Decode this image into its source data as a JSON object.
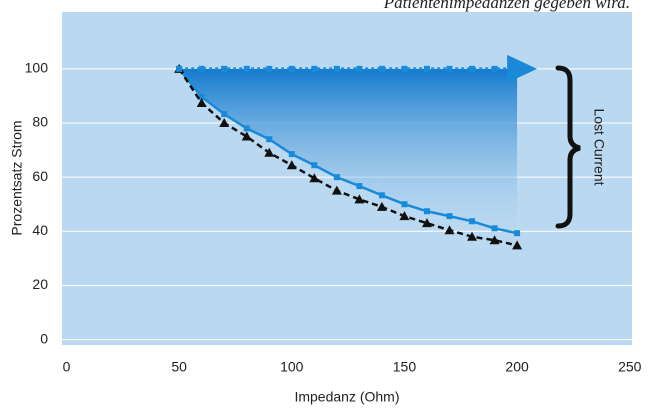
{
  "chart_data": {
    "type": "line",
    "caption": "Patientenimpedanzen gegeben wird.",
    "x_label": "Impedanz (Ohm)",
    "y_label": "Prozentsatz Strom",
    "annotation": "Lost Current",
    "x": [
      50,
      60,
      70,
      80,
      90,
      100,
      110,
      120,
      130,
      140,
      150,
      160,
      170,
      180,
      190,
      200
    ],
    "series": [
      {
        "color": "#1a8ad8",
        "style": "solid",
        "marker": "square",
        "values": [
          100,
          89.6,
          83.3,
          78,
          74,
          68.5,
          64.4,
          60,
          56.7,
          53.3,
          50,
          47.4,
          45.6,
          43.7,
          41.1,
          39.3
        ]
      },
      {
        "color": "#111111",
        "style": "dashed",
        "marker": "triangle",
        "values": [
          100,
          87.4,
          80,
          75,
          69,
          64.4,
          59.6,
          55,
          51.8,
          49,
          45.6,
          43,
          40.4,
          38,
          36.7,
          34.8
        ]
      },
      {
        "color": "#1a8ad8",
        "style": "dotted",
        "marker": "square",
        "values": [
          100,
          100,
          100,
          100,
          100,
          100,
          100,
          100,
          100,
          100,
          100,
          100,
          100,
          100,
          100,
          100
        ]
      }
    ],
    "xlim": [
      -2,
      251
    ],
    "ylim": [
      -2,
      121
    ],
    "xticks": [
      0,
      50,
      100,
      150,
      200,
      250
    ],
    "yticks": [
      0,
      20,
      40,
      60,
      80,
      100
    ],
    "grid": true
  }
}
